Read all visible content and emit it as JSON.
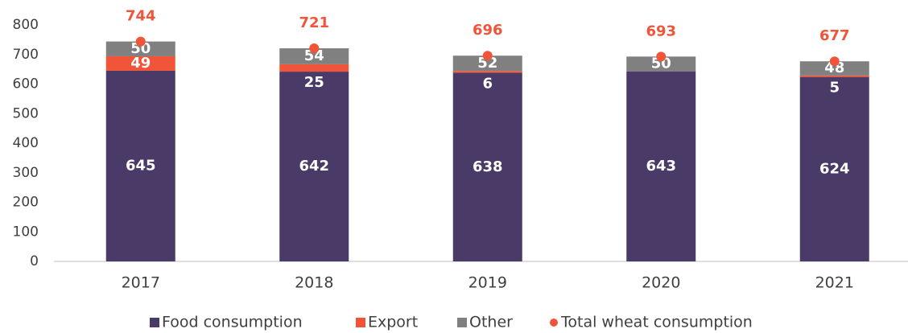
{
  "chart_data": {
    "type": "stacked_bar_with_points",
    "categories": [
      "2017",
      "2018",
      "2019",
      "2020",
      "2021"
    ],
    "series": [
      {
        "name": "Food consumption",
        "color": "#4a3a68",
        "values": [
          645,
          642,
          638,
          643,
          624
        ]
      },
      {
        "name": "Export",
        "color": "#f0553a",
        "values": [
          49,
          25,
          6,
          0,
          5
        ]
      },
      {
        "name": "Other",
        "color": "#808080",
        "values": [
          50,
          54,
          52,
          50,
          48
        ]
      },
      {
        "name": "Total wheat consumption",
        "color": "#f0553a",
        "type": "point",
        "values": [
          744,
          721,
          696,
          693,
          677
        ]
      }
    ],
    "ylim": [
      0,
      800
    ],
    "yticks": [
      0,
      100,
      200,
      300,
      400,
      500,
      600,
      700,
      800
    ],
    "grid": false
  }
}
